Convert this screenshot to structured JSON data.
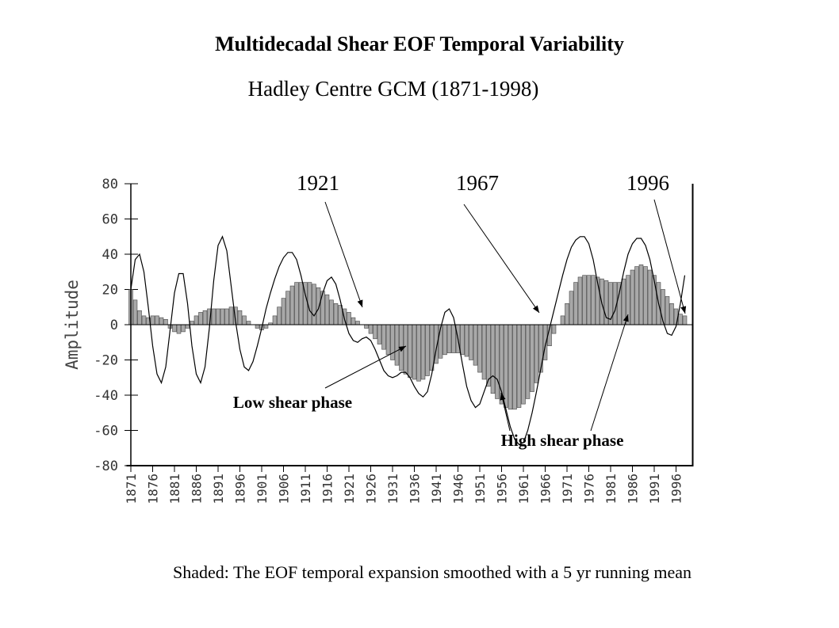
{
  "chart_data": {
    "type": "bar-line",
    "title": "Multidecadal Shear EOF Temporal Variability",
    "subtitle": "Hadley Centre GCM (1871-1998)",
    "y_label": "Amplitude",
    "footnote": "Shaded: The EOF temporal expansion smoothed with a 5 yr running mean",
    "annotations": [
      {
        "text": "1921"
      },
      {
        "text": "1967"
      },
      {
        "text": "1996"
      },
      {
        "text": "Low shear phase"
      },
      {
        "text": "High shear phase"
      }
    ],
    "x": [
      1871,
      1872,
      1873,
      1874,
      1875,
      1876,
      1877,
      1878,
      1879,
      1880,
      1881,
      1882,
      1883,
      1884,
      1885,
      1886,
      1887,
      1888,
      1889,
      1890,
      1891,
      1892,
      1893,
      1894,
      1895,
      1896,
      1897,
      1898,
      1899,
      1900,
      1901,
      1902,
      1903,
      1904,
      1905,
      1906,
      1907,
      1908,
      1909,
      1910,
      1911,
      1912,
      1913,
      1914,
      1915,
      1916,
      1917,
      1918,
      1919,
      1920,
      1921,
      1922,
      1923,
      1924,
      1925,
      1926,
      1927,
      1928,
      1929,
      1930,
      1931,
      1932,
      1933,
      1934,
      1935,
      1936,
      1937,
      1938,
      1939,
      1940,
      1941,
      1942,
      1943,
      1944,
      1945,
      1946,
      1947,
      1948,
      1949,
      1950,
      1951,
      1952,
      1953,
      1954,
      1955,
      1956,
      1957,
      1958,
      1959,
      1960,
      1961,
      1962,
      1963,
      1964,
      1965,
      1966,
      1967,
      1968,
      1969,
      1970,
      1971,
      1972,
      1973,
      1974,
      1975,
      1976,
      1977,
      1978,
      1979,
      1980,
      1981,
      1982,
      1983,
      1984,
      1985,
      1986,
      1987,
      1988,
      1989,
      1990,
      1991,
      1992,
      1993,
      1994,
      1995,
      1996,
      1997,
      1998
    ],
    "series": [
      {
        "kind": "bar",
        "color": "#a8a8a8",
        "values": [
          20,
          14,
          8,
          5,
          4,
          5,
          5,
          4,
          3,
          -2,
          -4,
          -5,
          -4,
          -2,
          2,
          5,
          7,
          8,
          9,
          9,
          9,
          9,
          9,
          10,
          10,
          8,
          5,
          2,
          0,
          -2,
          -3,
          -2,
          1,
          5,
          10,
          15,
          19,
          22,
          24,
          24,
          24,
          24,
          23,
          21,
          19,
          17,
          14,
          12,
          11,
          9,
          7,
          4,
          2,
          0,
          -2,
          -5,
          -8,
          -11,
          -14,
          -17,
          -20,
          -23,
          -26,
          -28,
          -30,
          -31,
          -32,
          -31,
          -29,
          -26,
          -22,
          -19,
          -17,
          -16,
          -16,
          -16,
          -17,
          -18,
          -20,
          -23,
          -27,
          -31,
          -35,
          -39,
          -42,
          -45,
          -47,
          -48,
          -48,
          -47,
          -45,
          -42,
          -38,
          -33,
          -27,
          -20,
          -12,
          -5,
          0,
          5,
          12,
          19,
          24,
          27,
          28,
          28,
          28,
          27,
          26,
          25,
          24,
          24,
          24,
          26,
          28,
          31,
          33,
          34,
          33,
          31,
          28,
          24,
          20,
          16,
          12,
          9,
          6,
          5
        ]
      },
      {
        "kind": "line",
        "color": "#000000",
        "values": [
          20,
          37,
          40,
          30,
          10,
          -12,
          -28,
          -33,
          -24,
          -3,
          18,
          29,
          29,
          12,
          -12,
          -28,
          -33,
          -24,
          -2,
          25,
          45,
          50,
          42,
          22,
          2,
          -14,
          -24,
          -26,
          -21,
          -12,
          -2,
          9,
          18,
          26,
          33,
          38,
          41,
          41,
          37,
          28,
          17,
          8,
          5,
          9,
          18,
          25,
          27,
          23,
          14,
          3,
          -5,
          -9,
          -10,
          -8,
          -7,
          -9,
          -14,
          -20,
          -26,
          -29,
          -30,
          -29,
          -27,
          -27,
          -30,
          -35,
          -39,
          -41,
          -38,
          -28,
          -14,
          -2,
          7,
          9,
          4,
          -8,
          -22,
          -35,
          -43,
          -47,
          -45,
          -38,
          -31,
          -29,
          -31,
          -38,
          -48,
          -58,
          -65,
          -68,
          -67,
          -60,
          -50,
          -38,
          -25,
          -12,
          -2,
          8,
          18,
          28,
          37,
          44,
          48,
          50,
          50,
          46,
          37,
          24,
          12,
          4,
          3,
          8,
          18,
          30,
          40,
          46,
          49,
          49,
          45,
          37,
          25,
          12,
          2,
          -5,
          -6,
          -1,
          12,
          28
        ]
      }
    ],
    "xlim": [
      1870,
      2000
    ],
    "xticks": [
      1871,
      1876,
      1881,
      1886,
      1891,
      1896,
      1901,
      1906,
      1911,
      1916,
      1921,
      1926,
      1931,
      1936,
      1941,
      1946,
      1951,
      1956,
      1961,
      1966,
      1971,
      1976,
      1981,
      1986,
      1991,
      1996
    ],
    "ylim": [
      -80,
      80
    ],
    "yticks": [
      -80,
      -60,
      -40,
      -20,
      0,
      20,
      40,
      60,
      80
    ]
  }
}
